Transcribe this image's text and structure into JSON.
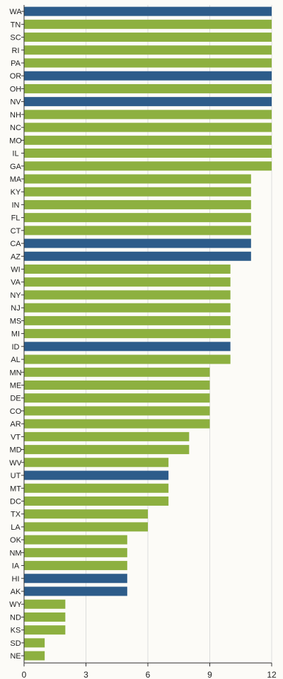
{
  "chart_data": {
    "type": "bar",
    "orientation": "horizontal",
    "title": "",
    "xlabel": "",
    "ylabel": "",
    "xlim": [
      0,
      12
    ],
    "x_ticks": [
      0,
      3,
      6,
      9,
      12
    ],
    "grid": true,
    "legend": "none",
    "colors": {
      "green": "#8db040",
      "blue": "#2d5c8a"
    },
    "categories": [
      "WA",
      "TN",
      "SC",
      "RI",
      "PA",
      "OR",
      "OH",
      "NV",
      "NH",
      "NC",
      "MO",
      "IL",
      "GA",
      "MA",
      "KY",
      "IN",
      "FL",
      "CT",
      "CA",
      "AZ",
      "WI",
      "VA",
      "NY",
      "NJ",
      "MS",
      "MI",
      "ID",
      "AL",
      "MN",
      "ME",
      "DE",
      "CO",
      "AR",
      "VT",
      "MD",
      "WV",
      "UT",
      "MT",
      "DC",
      "TX",
      "LA",
      "OK",
      "NM",
      "IA",
      "HI",
      "AK",
      "WY",
      "ND",
      "KS",
      "SD",
      "NE"
    ],
    "values": [
      12,
      12,
      12,
      12,
      12,
      12,
      12,
      12,
      12,
      12,
      12,
      12,
      12,
      11,
      11,
      11,
      11,
      11,
      11,
      11,
      10,
      10,
      10,
      10,
      10,
      10,
      10,
      10,
      9,
      9,
      9,
      9,
      9,
      8,
      8,
      7,
      7,
      7,
      7,
      6,
      6,
      5,
      5,
      5,
      5,
      5,
      2,
      2,
      2,
      1,
      1
    ],
    "bar_colors": [
      "blue",
      "green",
      "green",
      "green",
      "green",
      "blue",
      "green",
      "blue",
      "green",
      "green",
      "green",
      "green",
      "green",
      "green",
      "green",
      "green",
      "green",
      "green",
      "blue",
      "blue",
      "green",
      "green",
      "green",
      "green",
      "green",
      "green",
      "blue",
      "green",
      "green",
      "green",
      "green",
      "green",
      "green",
      "green",
      "green",
      "green",
      "blue",
      "green",
      "green",
      "green",
      "green",
      "green",
      "green",
      "green",
      "blue",
      "blue",
      "green",
      "green",
      "green",
      "green",
      "green"
    ]
  }
}
